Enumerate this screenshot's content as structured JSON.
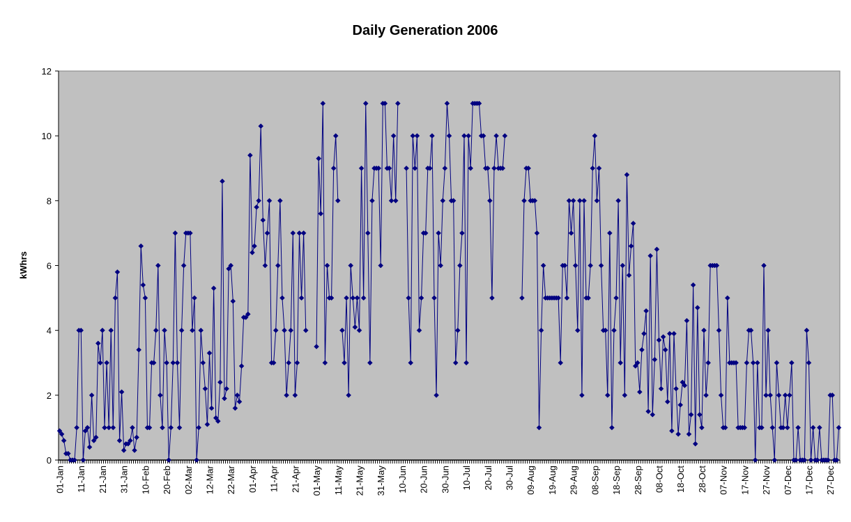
{
  "chart_data": {
    "type": "line",
    "title": "Daily Generation 2006",
    "xlabel": "",
    "ylabel": "kWhrs",
    "ylim": [
      0,
      12
    ],
    "yticks": [
      0,
      2,
      4,
      6,
      8,
      10,
      12
    ],
    "grid": false,
    "legend": "none",
    "colors": {
      "plot_background": "#C0C0C0",
      "series": "#000080",
      "page_background": "#FFFFFF"
    },
    "marker": "diamond",
    "x_start": "01-Jan-2006",
    "x_tick_labels": [
      "01-Jan",
      "11-Jan",
      "21-Jan",
      "31-Jan",
      "10-Feb",
      "20-Feb",
      "02-Mar",
      "12-Mar",
      "22-Mar",
      "01-Apr",
      "11-Apr",
      "21-Apr",
      "01-May",
      "11-May",
      "21-May",
      "31-May",
      "10-Jun",
      "20-Jun",
      "30-Jun",
      "10-Jul",
      "20-Jul",
      "30-Jul",
      "09-Aug",
      "19-Aug",
      "29-Aug",
      "08-Sep",
      "18-Sep",
      "28-Sep",
      "08-Oct",
      "18-Oct",
      "28-Oct",
      "07-Nov",
      "17-Nov",
      "27-Nov",
      "07-Dec",
      "17-Dec",
      "27-Dec"
    ],
    "series": [
      {
        "values": [
          0.9,
          0.8,
          0.6,
          0.2,
          0.2,
          0,
          0,
          0,
          1,
          4,
          4,
          0,
          0.9,
          1,
          0.4,
          2,
          0.6,
          0.7,
          3.6,
          3,
          4,
          1,
          3,
          1,
          4,
          1,
          5,
          5.8,
          0.6,
          2.1,
          0.3,
          0.5,
          0.5,
          0.6,
          1,
          0.3,
          0.7,
          3.4,
          6.6,
          5.4,
          5,
          1,
          1,
          3,
          3,
          4,
          6,
          2,
          1,
          4,
          3,
          0,
          1,
          3,
          7,
          3,
          1,
          4,
          6,
          7,
          7,
          7,
          4,
          5,
          0,
          1,
          4,
          3,
          2.2,
          1.1,
          3.3,
          1.6,
          5.3,
          1.3,
          1.2,
          2.4,
          8.6,
          1.9,
          2.2,
          5.9,
          6,
          4.9,
          1.6,
          2,
          1.8,
          2.9,
          4.4,
          4.4,
          4.5,
          9.4,
          6.4,
          6.6,
          7.8,
          8,
          10.3,
          7.4,
          6,
          7,
          8,
          3,
          3,
          4,
          6,
          8,
          5,
          4,
          2,
          3,
          4,
          7,
          2,
          3,
          7,
          5,
          7,
          4,
          null,
          null,
          null,
          null,
          3.5,
          9.3,
          7.6,
          11,
          3,
          6,
          5,
          5,
          9,
          10,
          8,
          null,
          4,
          3,
          5,
          2,
          6,
          5,
          4.1,
          5,
          4,
          9,
          5,
          11,
          7,
          3,
          8,
          9,
          9,
          9,
          6,
          11,
          11,
          9,
          9,
          8,
          10,
          8,
          11,
          null,
          null,
          null,
          9,
          5,
          3,
          10,
          9,
          10,
          4,
          5,
          7,
          7,
          9,
          9,
          10,
          5,
          2,
          7,
          6,
          8,
          9,
          11,
          10,
          8,
          8,
          3,
          4,
          6,
          7,
          10,
          3,
          10,
          9,
          11,
          11,
          11,
          11,
          10,
          10,
          9,
          9,
          8,
          5,
          9,
          10,
          9,
          9,
          9,
          10,
          null,
          null,
          null,
          null,
          null,
          null,
          null,
          5,
          8,
          9,
          9,
          8,
          8,
          8,
          7,
          1,
          4,
          6,
          5,
          5,
          5,
          5,
          5,
          5,
          5,
          3,
          6,
          6,
          5,
          8,
          7,
          8,
          6,
          4,
          8,
          2,
          8,
          5,
          5,
          6,
          9,
          10,
          8,
          9,
          6,
          4,
          4,
          2,
          7,
          1,
          4,
          5,
          8,
          3,
          6,
          2,
          8.8,
          5.7,
          6.6,
          7.3,
          2.9,
          3,
          2.1,
          3.4,
          3.9,
          4.6,
          1.5,
          6.3,
          1.4,
          3.1,
          6.5,
          3.7,
          2.2,
          3.8,
          3.4,
          1.8,
          3.9,
          0.9,
          3.9,
          2.2,
          0.8,
          1.7,
          2.4,
          2.3,
          4.3,
          0.8,
          1.4,
          5.4,
          0.5,
          4.7,
          1.4,
          1,
          4,
          2,
          3,
          6,
          6,
          6,
          6,
          4,
          2,
          1,
          1,
          5,
          3,
          3,
          3,
          3,
          1,
          1,
          1,
          1,
          3,
          4,
          4,
          3,
          0,
          3,
          1,
          1,
          6,
          2,
          4,
          2,
          1,
          0,
          3,
          2,
          1,
          1,
          2,
          1,
          2,
          3,
          0,
          0,
          1,
          0,
          0,
          0,
          4,
          3,
          0,
          1,
          0,
          0,
          1,
          0,
          0,
          0,
          0,
          2,
          2,
          0,
          0,
          1
        ]
      }
    ]
  }
}
